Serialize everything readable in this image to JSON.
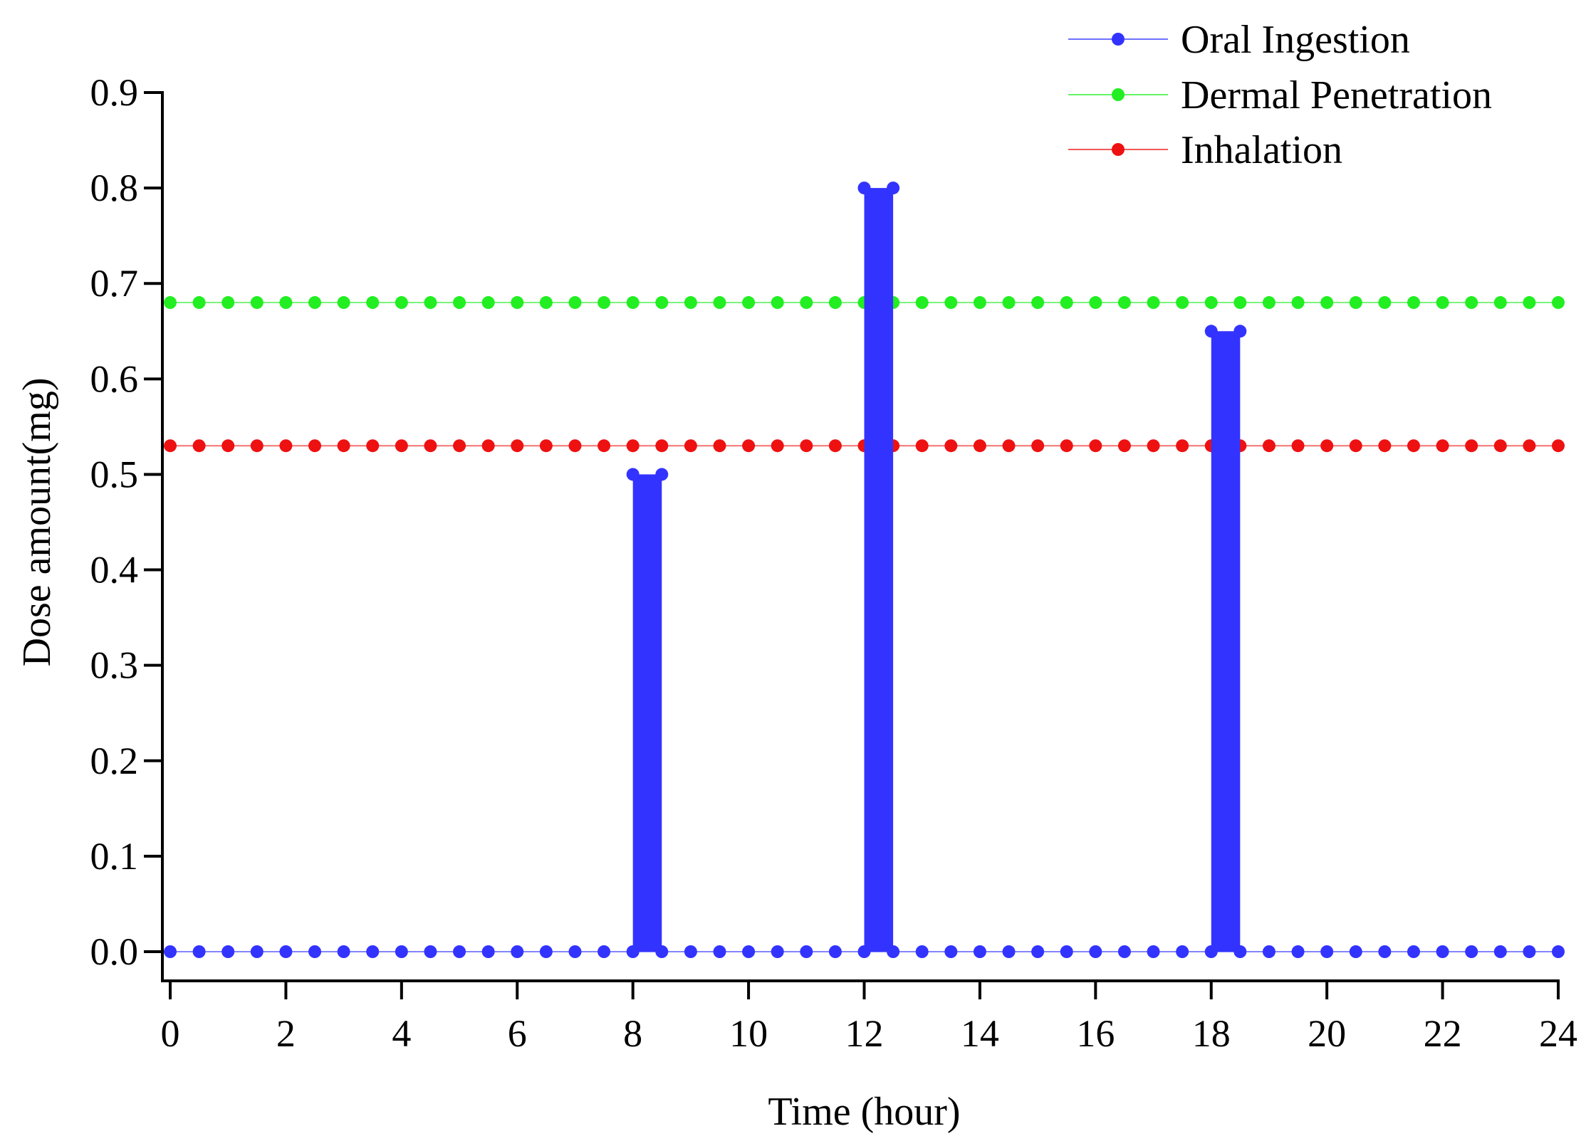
{
  "chart_data": {
    "type": "line",
    "title": "",
    "xlabel": "Time (hour)",
    "ylabel": "Dose amount(mg)",
    "xlim": [
      0,
      24
    ],
    "ylim": [
      0,
      0.9
    ],
    "x_ticks": [
      0,
      2,
      4,
      6,
      8,
      10,
      12,
      14,
      16,
      18,
      20,
      22,
      24
    ],
    "x_tick_labels": [
      "0",
      "2",
      "4",
      "6",
      "8",
      "10",
      "12",
      "14",
      "16",
      "18",
      "20",
      "22",
      "24"
    ],
    "y_ticks": [
      0.0,
      0.1,
      0.2,
      0.3,
      0.4,
      0.5,
      0.6,
      0.7,
      0.8,
      0.9
    ],
    "y_tick_labels": [
      "0.0",
      "0.1",
      "0.2",
      "0.3",
      "0.4",
      "0.5",
      "0.6",
      "0.7",
      "0.8",
      "0.9"
    ],
    "grid": false,
    "legend_position": "top-right",
    "series": [
      {
        "name": "Oral Ingestion",
        "color": "#3333ff",
        "baseline": 0.0,
        "x_step": 0.5,
        "doses": [
          {
            "start": 8,
            "end": 8.5,
            "value": 0.5
          },
          {
            "start": 12,
            "end": 12.5,
            "value": 0.8
          },
          {
            "start": 18,
            "end": 18.5,
            "value": 0.65
          }
        ]
      },
      {
        "name": "Dermal Penetration",
        "color": "#22ee22",
        "constant": 0.68,
        "x_step": 0.5
      },
      {
        "name": "Inhalation",
        "color": "#ee1111",
        "constant": 0.53,
        "x_step": 0.5
      }
    ]
  }
}
